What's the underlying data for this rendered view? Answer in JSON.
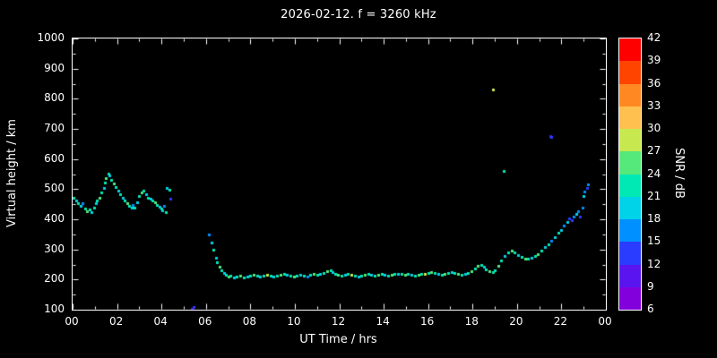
{
  "title": "2026-02-12. f = 3260 kHz",
  "chart_data": {
    "type": "scatter",
    "title": "2026-02-12. f = 3260 kHz",
    "xlabel": "UT Time / hrs",
    "ylabel": "Virtual height / km",
    "xlim": [
      0,
      24
    ],
    "ylim": [
      100,
      1000
    ],
    "grid": false,
    "background": "#000000",
    "axis_color": "#ffffff",
    "x_ticks": {
      "values": [
        0,
        2,
        4,
        6,
        8,
        10,
        12,
        14,
        16,
        18,
        20,
        22,
        24
      ],
      "labels": [
        "00",
        "02",
        "04",
        "06",
        "08",
        "10",
        "12",
        "14",
        "16",
        "18",
        "20",
        "22",
        "00"
      ]
    },
    "y_ticks": {
      "values": [
        100,
        200,
        300,
        400,
        500,
        600,
        700,
        800,
        900,
        1000
      ],
      "labels": [
        "100",
        "200",
        "300",
        "400",
        "500",
        "600",
        "700",
        "800",
        "900",
        "1000"
      ]
    },
    "colorbar": {
      "label": "SNR / dB",
      "min": 6,
      "max": 42,
      "step": 3,
      "tick_labels": [
        "6",
        "9",
        "12",
        "15",
        "18",
        "21",
        "24",
        "27",
        "30",
        "33",
        "36",
        "39",
        "42"
      ],
      "colors_bottom_to_top": [
        "#8200dc",
        "#5a14f0",
        "#2a3cff",
        "#0090ff",
        "#00d2e8",
        "#00e8b4",
        "#55e87a",
        "#c8e850",
        "#ffc050",
        "#ff8822",
        "#ff4400",
        "#ff0000"
      ]
    },
    "points_format": "[ut_hours, virtual_height_km, snr_db]",
    "points": [
      [
        0.05,
        470,
        21
      ],
      [
        0.15,
        462,
        18
      ],
      [
        0.25,
        452,
        21
      ],
      [
        0.35,
        446,
        18
      ],
      [
        0.45,
        452,
        15
      ],
      [
        0.55,
        436,
        21
      ],
      [
        0.65,
        428,
        24
      ],
      [
        0.75,
        432,
        21
      ],
      [
        0.85,
        424,
        18
      ],
      [
        0.95,
        438,
        21
      ],
      [
        1.05,
        452,
        18
      ],
      [
        1.1,
        462,
        21
      ],
      [
        1.2,
        472,
        24
      ],
      [
        1.3,
        488,
        21
      ],
      [
        1.4,
        505,
        18
      ],
      [
        1.45,
        522,
        21
      ],
      [
        1.5,
        538,
        24
      ],
      [
        1.6,
        552,
        21
      ],
      [
        1.65,
        545,
        18
      ],
      [
        1.75,
        530,
        21
      ],
      [
        1.85,
        520,
        24
      ],
      [
        1.95,
        508,
        21
      ],
      [
        2.05,
        494,
        18
      ],
      [
        2.15,
        482,
        21
      ],
      [
        2.25,
        470,
        18
      ],
      [
        2.35,
        462,
        21
      ],
      [
        2.45,
        452,
        24
      ],
      [
        2.55,
        445,
        21
      ],
      [
        2.65,
        440,
        18
      ],
      [
        2.7,
        448,
        15
      ],
      [
        2.8,
        438,
        21
      ],
      [
        2.9,
        456,
        18
      ],
      [
        3.0,
        478,
        21
      ],
      [
        3.1,
        490,
        24
      ],
      [
        3.2,
        496,
        21
      ],
      [
        3.3,
        482,
        18
      ],
      [
        3.4,
        472,
        21
      ],
      [
        3.5,
        468,
        18
      ],
      [
        3.6,
        462,
        21
      ],
      [
        3.7,
        455,
        24
      ],
      [
        3.8,
        448,
        21
      ],
      [
        3.9,
        442,
        18
      ],
      [
        4.0,
        436,
        21
      ],
      [
        4.05,
        430,
        18
      ],
      [
        4.1,
        446,
        15
      ],
      [
        4.2,
        424,
        21
      ],
      [
        4.25,
        505,
        18
      ],
      [
        4.35,
        498,
        21
      ],
      [
        4.4,
        468,
        12
      ],
      [
        5.35,
        104,
        9
      ],
      [
        5.45,
        110,
        12
      ],
      [
        6.15,
        350,
        15
      ],
      [
        6.25,
        322,
        18
      ],
      [
        6.35,
        298,
        21
      ],
      [
        6.45,
        272,
        18
      ],
      [
        6.5,
        256,
        21
      ],
      [
        6.6,
        243,
        24
      ],
      [
        6.7,
        232,
        21
      ],
      [
        6.8,
        222,
        18
      ],
      [
        6.9,
        215,
        21
      ],
      [
        7.0,
        210,
        24
      ],
      [
        7.1,
        212,
        21
      ],
      [
        7.25,
        208,
        18
      ],
      [
        7.4,
        210,
        21
      ],
      [
        7.55,
        212,
        24
      ],
      [
        7.7,
        208,
        21
      ],
      [
        7.85,
        210,
        18
      ],
      [
        8.0,
        212,
        21
      ],
      [
        8.15,
        215,
        24
      ],
      [
        8.3,
        212,
        21
      ],
      [
        8.45,
        210,
        18
      ],
      [
        8.6,
        212,
        21
      ],
      [
        8.75,
        215,
        27
      ],
      [
        8.9,
        212,
        21
      ],
      [
        9.05,
        210,
        18
      ],
      [
        9.2,
        212,
        21
      ],
      [
        9.35,
        215,
        24
      ],
      [
        9.5,
        218,
        21
      ],
      [
        9.65,
        215,
        18
      ],
      [
        9.8,
        212,
        21
      ],
      [
        9.95,
        210,
        24
      ],
      [
        10.1,
        212,
        21
      ],
      [
        10.25,
        215,
        18
      ],
      [
        10.4,
        212,
        21
      ],
      [
        10.55,
        210,
        15
      ],
      [
        10.7,
        215,
        21
      ],
      [
        10.85,
        218,
        24
      ],
      [
        11.0,
        215,
        21
      ],
      [
        11.15,
        218,
        18
      ],
      [
        11.3,
        222,
        21
      ],
      [
        11.45,
        228,
        24
      ],
      [
        11.6,
        230,
        21
      ],
      [
        11.7,
        225,
        18
      ],
      [
        11.8,
        218,
        21
      ],
      [
        11.95,
        215,
        24
      ],
      [
        12.1,
        212,
        21
      ],
      [
        12.25,
        215,
        18
      ],
      [
        12.4,
        218,
        21
      ],
      [
        12.55,
        215,
        27
      ],
      [
        12.7,
        212,
        21
      ],
      [
        12.85,
        210,
        18
      ],
      [
        13.0,
        212,
        21
      ],
      [
        13.15,
        215,
        24
      ],
      [
        13.3,
        218,
        21
      ],
      [
        13.45,
        215,
        18
      ],
      [
        13.6,
        212,
        21
      ],
      [
        13.75,
        215,
        24
      ],
      [
        13.9,
        218,
        21
      ],
      [
        14.05,
        215,
        18
      ],
      [
        14.2,
        212,
        21
      ],
      [
        14.35,
        215,
        24
      ],
      [
        14.5,
        218,
        21
      ],
      [
        14.65,
        220,
        18
      ],
      [
        14.8,
        218,
        21
      ],
      [
        14.95,
        215,
        24
      ],
      [
        15.1,
        218,
        21
      ],
      [
        15.25,
        215,
        18
      ],
      [
        15.4,
        212,
        21
      ],
      [
        15.55,
        215,
        24
      ],
      [
        15.7,
        218,
        21
      ],
      [
        15.85,
        220,
        27
      ],
      [
        16.0,
        222,
        21
      ],
      [
        16.15,
        225,
        24
      ],
      [
        16.3,
        222,
        21
      ],
      [
        16.45,
        218,
        18
      ],
      [
        16.6,
        215,
        21
      ],
      [
        16.75,
        218,
        24
      ],
      [
        16.9,
        222,
        21
      ],
      [
        17.05,
        225,
        18
      ],
      [
        17.2,
        222,
        21
      ],
      [
        17.35,
        218,
        24
      ],
      [
        17.5,
        215,
        21
      ],
      [
        17.65,
        218,
        18
      ],
      [
        17.8,
        222,
        21
      ],
      [
        17.95,
        228,
        24
      ],
      [
        18.1,
        238,
        21
      ],
      [
        18.25,
        245,
        24
      ],
      [
        18.4,
        248,
        21
      ],
      [
        18.5,
        242,
        18
      ],
      [
        18.6,
        235,
        21
      ],
      [
        18.75,
        228,
        24
      ],
      [
        18.9,
        225,
        21
      ],
      [
        18.9,
        830,
        27
      ],
      [
        19.4,
        560,
        21
      ],
      [
        19.0,
        232,
        21
      ],
      [
        19.15,
        245,
        24
      ],
      [
        19.3,
        262,
        21
      ],
      [
        19.45,
        278,
        18
      ],
      [
        19.6,
        290,
        21
      ],
      [
        19.75,
        295,
        24
      ],
      [
        19.9,
        290,
        21
      ],
      [
        20.05,
        282,
        18
      ],
      [
        20.2,
        275,
        21
      ],
      [
        20.35,
        270,
        24
      ],
      [
        20.5,
        268,
        21
      ],
      [
        20.65,
        272,
        18
      ],
      [
        20.8,
        278,
        21
      ],
      [
        20.95,
        285,
        24
      ],
      [
        21.1,
        295,
        21
      ],
      [
        21.25,
        308,
        18
      ],
      [
        21.4,
        318,
        21
      ],
      [
        21.5,
        675,
        9
      ],
      [
        21.55,
        672,
        12
      ],
      [
        21.55,
        330,
        15
      ],
      [
        21.7,
        342,
        18
      ],
      [
        21.85,
        355,
        21
      ],
      [
        22.0,
        365,
        18
      ],
      [
        22.1,
        378,
        15
      ],
      [
        22.25,
        392,
        18
      ],
      [
        22.35,
        402,
        12
      ],
      [
        22.45,
        398,
        12
      ],
      [
        22.55,
        410,
        15
      ],
      [
        22.65,
        418,
        18
      ],
      [
        22.75,
        428,
        15
      ],
      [
        22.85,
        408,
        12
      ],
      [
        22.95,
        440,
        15
      ],
      [
        23.0,
        478,
        18
      ],
      [
        23.05,
        492,
        15
      ],
      [
        23.15,
        505,
        12
      ],
      [
        23.2,
        515,
        15
      ]
    ]
  }
}
